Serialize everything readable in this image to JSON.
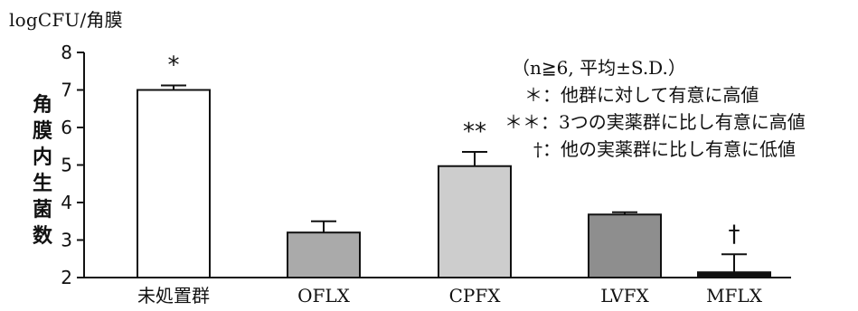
{
  "chart_data": {
    "type": "bar",
    "unit_label": "logCFU/角膜",
    "ylabel": "角膜内生菌数",
    "xlabel": "",
    "title": "",
    "categories": [
      "未処置群",
      "OFLX",
      "CPFX",
      "LVFX",
      "MFLX"
    ],
    "values": [
      7.0,
      3.2,
      4.97,
      3.68,
      2.14
    ],
    "errors": [
      0.12,
      0.3,
      0.38,
      0.06,
      0.48
    ],
    "annotations": [
      "*",
      "",
      "**",
      "",
      "†"
    ],
    "bar_colors": [
      "#ffffff",
      "#aaaaaa",
      "#cdcdcd",
      "#8e8e8e",
      "#111111"
    ],
    "ylim": [
      2,
      8
    ],
    "yticks": [
      "2",
      "3",
      "4",
      "5",
      "6",
      "7",
      "8"
    ],
    "grid": false,
    "legend_position": "top-right"
  },
  "legend": {
    "lines": [
      "（n≧6, 平均±S.D.）",
      "＊：他群に対して有意に高値",
      "＊＊：3つの実薬群に比し有意に高値",
      "†：他の実薬群に比し有意に低値"
    ]
  }
}
